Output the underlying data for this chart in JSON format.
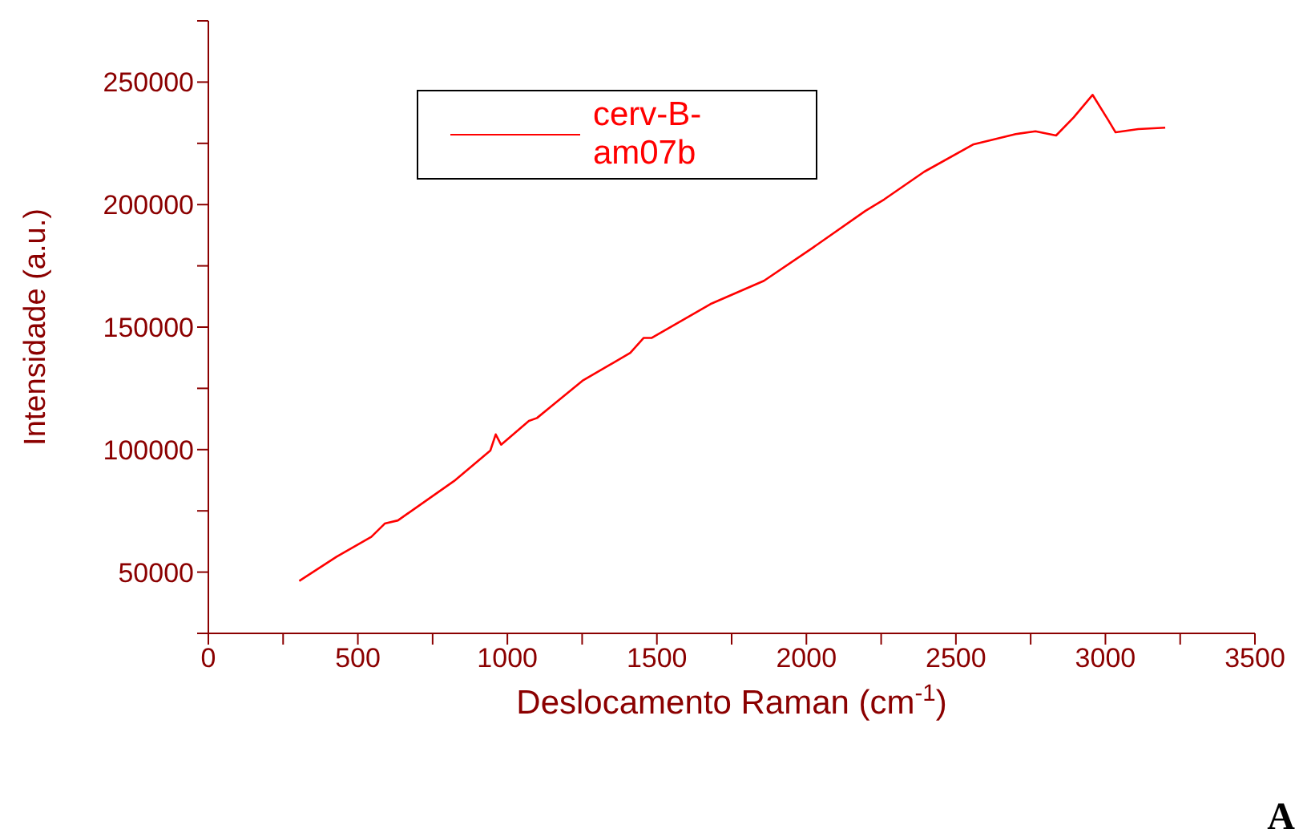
{
  "chart_data": {
    "type": "line",
    "xlabel": "Deslocamento Raman (cm$^{-1}$)",
    "ylabel": "Intensidade (a.u.)",
    "xlim": [
      0,
      3500
    ],
    "xticks": [
      0,
      {
        "value": 250,
        "label": null
      },
      500,
      {
        "value": 750,
        "label": null
      },
      1000,
      {
        "value": 1250,
        "label": null
      },
      1500,
      {
        "value": 1750,
        "label": null
      },
      2000,
      {
        "value": 2250,
        "label": null
      },
      2500,
      {
        "value": 2750,
        "label": null
      },
      3000,
      {
        "value": 3250,
        "label": null
      },
      3500
    ],
    "ylim": [
      25000,
      275000
    ],
    "yticks": [
      {
        "value": 25000,
        "label": null
      },
      50000,
      {
        "value": 75000,
        "label": null
      },
      100000,
      {
        "value": 125000,
        "label": null
      },
      150000,
      {
        "value": 175000,
        "label": null
      },
      200000,
      {
        "value": 225000,
        "label": null
      },
      250000,
      {
        "value": 275000,
        "label": null
      }
    ],
    "legend": "top left",
    "annotations": [
      "A"
    ],
    "series": [
      {
        "name": "cerv-B-am07b",
        "color": "#ff0000",
        "x": [
          304,
          429,
          545,
          590,
          634,
          822,
          943,
          961,
          979,
          1072,
          1099,
          1251,
          1411,
          1456,
          1483,
          1679,
          1858,
          2019,
          2197,
          2260,
          2394,
          2557,
          2700,
          2766,
          2835,
          2894,
          2957,
          3010,
          3034,
          3110,
          3200
        ],
        "values": [
          46400,
          56300,
          64400,
          69800,
          71100,
          87200,
          99600,
          106200,
          102000,
          111700,
          112900,
          128100,
          139500,
          145600,
          145600,
          159400,
          168900,
          182200,
          197400,
          202100,
          213400,
          224500,
          228800,
          229900,
          228200,
          235600,
          244800,
          234400,
          229500,
          230800,
          231400
        ]
      }
    ]
  }
}
